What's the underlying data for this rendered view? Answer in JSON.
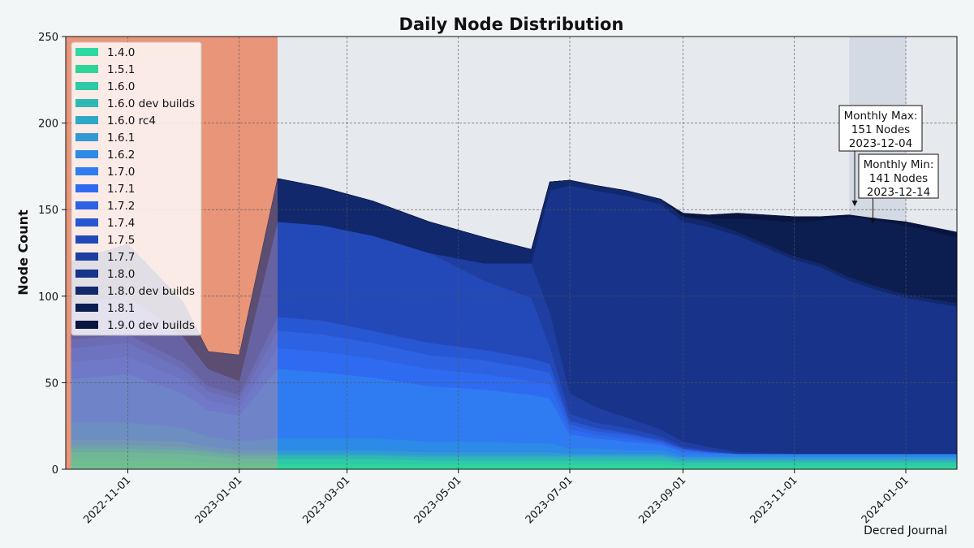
{
  "chart_data": {
    "type": "area",
    "stacked": true,
    "title": "Daily Node Distribution",
    "xlabel": "",
    "ylabel": "Node Count",
    "xlim": [
      "2022-09-28",
      "2024-01-29"
    ],
    "ylim": [
      0,
      250
    ],
    "grid": true,
    "legend_position": "top-left",
    "x_ticks": [
      "2022-11-01",
      "2023-01-01",
      "2023-03-01",
      "2023-05-01",
      "2023-07-01",
      "2023-09-01",
      "2023-11-01",
      "2024-01-01"
    ],
    "y_ticks": [
      0,
      50,
      100,
      150,
      200,
      250
    ],
    "shaded_regions": [
      {
        "start": "2022-09-28",
        "end": "2023-01-22",
        "color": "#e8957a"
      },
      {
        "start": "2023-12-01",
        "end": "2024-01-01",
        "color": "#d4dae4"
      }
    ],
    "x": [
      "2022-10-01",
      "2022-11-01",
      "2022-12-01",
      "2022-12-15",
      "2023-01-01",
      "2023-01-22",
      "2023-02-15",
      "2023-03-15",
      "2023-04-15",
      "2023-05-15",
      "2023-06-10",
      "2023-06-20",
      "2023-07-01",
      "2023-07-15",
      "2023-08-01",
      "2023-08-20",
      "2023-09-01",
      "2023-09-15",
      "2023-10-01",
      "2023-11-01",
      "2023-11-15",
      "2023-12-01",
      "2023-12-15",
      "2024-01-01",
      "2024-01-29"
    ],
    "series": [
      {
        "name": "1.4.0",
        "color": "#2fd8a0",
        "values": [
          2,
          2,
          2,
          2,
          1,
          1,
          1,
          1,
          1,
          1,
          1,
          1,
          1,
          1,
          1,
          1,
          1,
          1,
          1,
          1,
          1,
          1,
          1,
          1,
          1
        ]
      },
      {
        "name": "1.5.1",
        "color": "#2ed59a",
        "values": [
          3,
          3,
          3,
          2,
          2,
          2,
          2,
          2,
          2,
          2,
          2,
          2,
          2,
          2,
          2,
          2,
          1,
          1,
          1,
          1,
          1,
          1,
          1,
          1,
          1
        ]
      },
      {
        "name": "1.6.0",
        "color": "#2ec9a7",
        "values": [
          5,
          5,
          4,
          4,
          3,
          3,
          3,
          3,
          2,
          2,
          2,
          2,
          2,
          2,
          2,
          2,
          2,
          2,
          2,
          2,
          2,
          2,
          2,
          2,
          2
        ]
      },
      {
        "name": "1.6.0 dev builds",
        "color": "#2eb8b4",
        "values": [
          2,
          2,
          2,
          2,
          2,
          2,
          2,
          2,
          2,
          2,
          2,
          2,
          2,
          2,
          2,
          2,
          1,
          1,
          1,
          1,
          1,
          1,
          1,
          1,
          1
        ]
      },
      {
        "name": "1.6.0 rc4",
        "color": "#2fa8c8",
        "values": [
          2,
          2,
          2,
          1,
          1,
          1,
          1,
          1,
          1,
          1,
          1,
          1,
          1,
          1,
          1,
          1,
          1,
          1,
          1,
          1,
          1,
          1,
          1,
          1,
          1
        ]
      },
      {
        "name": "1.6.1",
        "color": "#3498d4",
        "values": [
          3,
          3,
          3,
          2,
          2,
          2,
          2,
          2,
          2,
          2,
          2,
          2,
          1,
          1,
          1,
          1,
          1,
          1,
          1,
          1,
          1,
          1,
          1,
          1,
          1
        ]
      },
      {
        "name": "1.6.2",
        "color": "#2b8be6",
        "values": [
          10,
          10,
          8,
          6,
          5,
          7,
          7,
          7,
          6,
          6,
          5,
          5,
          3,
          3,
          2,
          2,
          1,
          1,
          1,
          1,
          1,
          1,
          1,
          1,
          1
        ]
      },
      {
        "name": "1.7.0",
        "color": "#2f7cf2",
        "values": [
          25,
          28,
          20,
          15,
          15,
          40,
          38,
          35,
          32,
          30,
          28,
          26,
          8,
          6,
          5,
          3,
          2,
          1,
          1,
          1,
          1,
          1,
          1,
          1,
          1
        ]
      },
      {
        "name": "1.7.1",
        "color": "#2f6bf0",
        "values": [
          10,
          10,
          8,
          6,
          5,
          12,
          12,
          11,
          10,
          9,
          8,
          8,
          3,
          2,
          2,
          1,
          1,
          1,
          0,
          0,
          0,
          0,
          0,
          0,
          0
        ]
      },
      {
        "name": "1.7.2",
        "color": "#2d62e3",
        "values": [
          8,
          8,
          6,
          5,
          4,
          10,
          10,
          9,
          8,
          8,
          7,
          7,
          3,
          2,
          2,
          1,
          1,
          0,
          0,
          0,
          0,
          0,
          0,
          0,
          0
        ]
      },
      {
        "name": "1.7.4",
        "color": "#2857d3",
        "values": [
          5,
          5,
          4,
          3,
          3,
          8,
          8,
          7,
          7,
          6,
          6,
          5,
          2,
          2,
          1,
          1,
          0,
          0,
          0,
          0,
          0,
          0,
          0,
          0,
          0
        ]
      },
      {
        "name": "1.7.5",
        "color": "#2349b9",
        "values": [
          20,
          22,
          15,
          10,
          8,
          55,
          55,
          55,
          52,
          40,
          35,
          10,
          4,
          3,
          3,
          2,
          1,
          1,
          0,
          0,
          0,
          0,
          0,
          0,
          0
        ]
      },
      {
        "name": "1.7.7",
        "color": "#1e3ea2",
        "values": [
          0,
          0,
          0,
          0,
          0,
          0,
          0,
          0,
          0,
          10,
          20,
          20,
          12,
          9,
          6,
          4,
          3,
          2,
          1,
          0,
          0,
          0,
          0,
          0,
          0
        ]
      },
      {
        "name": "1.8.0",
        "color": "#17338a",
        "values": [
          0,
          0,
          0,
          0,
          0,
          0,
          0,
          0,
          0,
          0,
          0,
          70,
          120,
          125,
          128,
          130,
          127,
          127,
          125,
          112,
          108,
          100,
          95,
          90,
          85
        ]
      },
      {
        "name": "1.8.0 dev builds",
        "color": "#11286d",
        "values": [
          25,
          30,
          20,
          10,
          15,
          25,
          22,
          20,
          18,
          15,
          8,
          5,
          3,
          3,
          3,
          3,
          3,
          3,
          2,
          2,
          2,
          2,
          2,
          2,
          2
        ]
      },
      {
        "name": "1.8.1",
        "color": "#0c1d50",
        "values": [
          0,
          0,
          0,
          0,
          0,
          0,
          0,
          0,
          0,
          0,
          0,
          0,
          0,
          0,
          0,
          0,
          0,
          2,
          8,
          20,
          25,
          35,
          38,
          40,
          38
        ]
      },
      {
        "name": "1.9.0 dev builds",
        "color": "#09153f",
        "values": [
          0,
          0,
          0,
          0,
          0,
          0,
          0,
          0,
          0,
          0,
          0,
          0,
          0,
          0,
          0,
          0,
          2,
          2,
          3,
          3,
          2,
          1,
          1,
          2,
          3
        ]
      }
    ],
    "annotations": [
      {
        "text": [
          "Monthly Max:",
          "151 Nodes",
          "2023-12-04"
        ],
        "x": "2023-12-04",
        "y": 151
      },
      {
        "text": [
          "Monthly Min:",
          "141 Nodes",
          "2023-12-14"
        ],
        "x": "2023-12-14",
        "y": 141
      }
    ],
    "credit": "Decred Journal"
  }
}
